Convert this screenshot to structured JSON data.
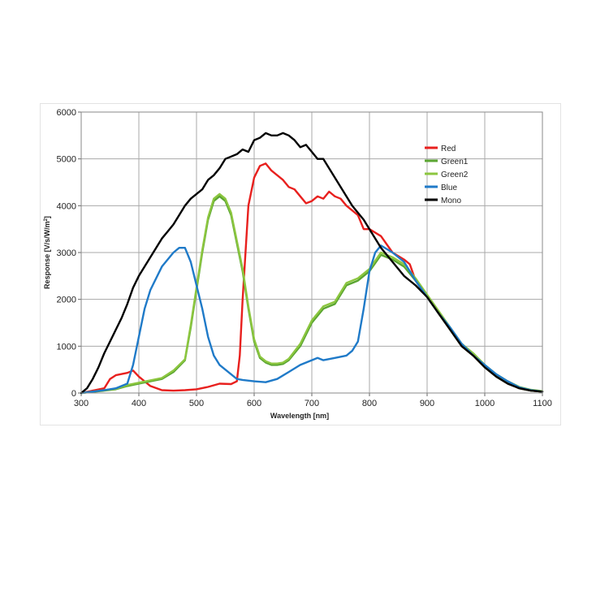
{
  "chart_data": {
    "type": "line",
    "xlabel": "Wavelength [nm]",
    "ylabel": {
      "main": "Response [V/s/W/m",
      "sup": "2",
      "tail": "]"
    },
    "xlim": [
      300,
      1100
    ],
    "ylim": [
      0,
      6000
    ],
    "xticks": [
      "300",
      "400",
      "500",
      "600",
      "700",
      "800",
      "900",
      "1000",
      "1100"
    ],
    "yticks": [
      "0",
      "1000",
      "2000",
      "3000",
      "4000",
      "5000",
      "6000"
    ],
    "grid": true,
    "legend_position": "top-right",
    "series": [
      {
        "name": "Red",
        "color": "#e8201e",
        "x": [
          300,
          320,
          340,
          350,
          360,
          380,
          390,
          400,
          420,
          440,
          460,
          480,
          500,
          520,
          540,
          560,
          570,
          575,
          580,
          590,
          600,
          610,
          620,
          630,
          640,
          650,
          660,
          670,
          680,
          690,
          700,
          710,
          720,
          730,
          740,
          750,
          760,
          780,
          790,
          800,
          820,
          840,
          860,
          870,
          880,
          900,
          920,
          940,
          960,
          980,
          1000,
          1020,
          1040,
          1060,
          1080,
          1100
        ],
        "y": [
          0,
          50,
          100,
          300,
          380,
          430,
          480,
          350,
          150,
          60,
          50,
          60,
          80,
          130,
          200,
          190,
          250,
          800,
          2000,
          4000,
          4600,
          4850,
          4900,
          4750,
          4650,
          4550,
          4400,
          4350,
          4200,
          4050,
          4100,
          4200,
          4150,
          4300,
          4200,
          4150,
          4000,
          3800,
          3500,
          3500,
          3350,
          3000,
          2850,
          2750,
          2400,
          2050,
          1700,
          1350,
          1000,
          800,
          550,
          350,
          200,
          100,
          50,
          30
        ]
      },
      {
        "name": "Green1",
        "color": "#5aa531",
        "x": [
          300,
          340,
          360,
          380,
          400,
          420,
          440,
          460,
          480,
          490,
          500,
          510,
          520,
          530,
          540,
          550,
          560,
          570,
          580,
          590,
          600,
          610,
          620,
          630,
          640,
          650,
          660,
          680,
          700,
          720,
          740,
          760,
          780,
          800,
          820,
          840,
          860,
          880,
          900,
          920,
          940,
          960,
          980,
          1000,
          1020,
          1040,
          1060,
          1080,
          1100
        ],
        "y": [
          0,
          50,
          80,
          150,
          200,
          250,
          300,
          450,
          700,
          1400,
          2200,
          3000,
          3700,
          4100,
          4200,
          4100,
          3800,
          3200,
          2600,
          1800,
          1100,
          750,
          650,
          600,
          600,
          620,
          700,
          1000,
          1500,
          1800,
          1900,
          2300,
          2400,
          2600,
          2950,
          2850,
          2700,
          2400,
          2050,
          1700,
          1350,
          1000,
          800,
          550,
          350,
          200,
          100,
          50,
          30
        ]
      },
      {
        "name": "Green2",
        "color": "#8cc63f",
        "x": [
          300,
          340,
          360,
          380,
          400,
          420,
          440,
          460,
          480,
          490,
          500,
          510,
          520,
          530,
          540,
          550,
          560,
          570,
          580,
          590,
          600,
          610,
          620,
          630,
          640,
          650,
          660,
          680,
          700,
          720,
          740,
          760,
          780,
          800,
          820,
          840,
          860,
          880,
          900,
          920,
          940,
          960,
          980,
          1000,
          1020,
          1040,
          1060,
          1080,
          1100
        ],
        "y": [
          0,
          60,
          90,
          170,
          220,
          270,
          320,
          480,
          720,
          1450,
          2250,
          3050,
          3750,
          4150,
          4250,
          4150,
          3850,
          3250,
          2650,
          1850,
          1150,
          780,
          680,
          630,
          630,
          650,
          730,
          1050,
          1550,
          1850,
          1950,
          2350,
          2450,
          2650,
          3000,
          2900,
          2750,
          2450,
          2100,
          1750,
          1400,
          1050,
          850,
          600,
          400,
          250,
          130,
          70,
          40
        ]
      },
      {
        "name": "Blue",
        "color": "#1f7ac8",
        "x": [
          300,
          320,
          340,
          360,
          380,
          390,
          400,
          410,
          420,
          440,
          460,
          470,
          480,
          490,
          500,
          510,
          520,
          530,
          540,
          560,
          570,
          580,
          600,
          620,
          640,
          660,
          680,
          700,
          710,
          720,
          740,
          760,
          770,
          780,
          790,
          800,
          810,
          820,
          840,
          860,
          880,
          900,
          920,
          940,
          960,
          980,
          1000,
          1020,
          1040,
          1060,
          1080,
          1100
        ],
        "y": [
          0,
          30,
          60,
          100,
          200,
          600,
          1200,
          1800,
          2200,
          2700,
          3000,
          3100,
          3100,
          2800,
          2300,
          1800,
          1200,
          800,
          600,
          400,
          300,
          280,
          250,
          230,
          300,
          450,
          600,
          700,
          750,
          700,
          750,
          800,
          900,
          1100,
          1800,
          2600,
          3000,
          3150,
          3000,
          2800,
          2400,
          2050,
          1700,
          1400,
          1050,
          800,
          600,
          400,
          250,
          120,
          60,
          30
        ]
      },
      {
        "name": "Mono",
        "color": "#000000",
        "x": [
          300,
          310,
          320,
          330,
          340,
          350,
          360,
          370,
          380,
          390,
          400,
          410,
          420,
          430,
          440,
          450,
          460,
          470,
          480,
          490,
          500,
          510,
          520,
          530,
          540,
          550,
          560,
          570,
          580,
          590,
          600,
          610,
          620,
          630,
          640,
          650,
          660,
          670,
          680,
          690,
          700,
          710,
          720,
          730,
          740,
          750,
          760,
          770,
          780,
          790,
          800,
          820,
          840,
          860,
          880,
          900,
          920,
          940,
          960,
          980,
          1000,
          1020,
          1040,
          1060,
          1080,
          1100
        ],
        "y": [
          0,
          100,
          300,
          550,
          850,
          1100,
          1350,
          1600,
          1900,
          2250,
          2500,
          2700,
          2900,
          3100,
          3300,
          3450,
          3600,
          3800,
          4000,
          4150,
          4250,
          4350,
          4550,
          4650,
          4800,
          5000,
          5050,
          5100,
          5200,
          5150,
          5400,
          5450,
          5550,
          5500,
          5500,
          5550,
          5500,
          5400,
          5250,
          5300,
          5150,
          5000,
          5000,
          4800,
          4600,
          4400,
          4200,
          4000,
          3850,
          3700,
          3500,
          3100,
          2800,
          2500,
          2300,
          2050,
          1700,
          1350,
          1000,
          800,
          550,
          350,
          200,
          100,
          50,
          30
        ]
      }
    ]
  }
}
